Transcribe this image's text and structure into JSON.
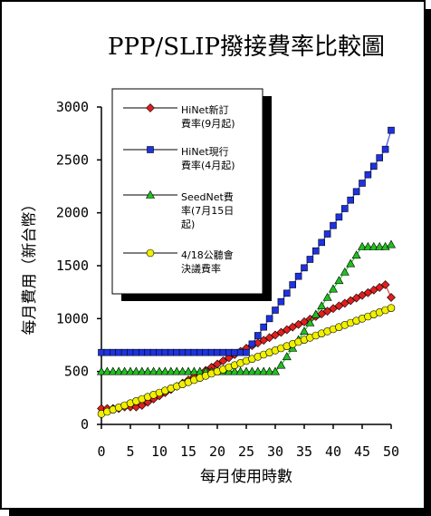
{
  "chart_data": {
    "type": "line",
    "title": "PPP/SLIP撥接費率比較圖",
    "xlabel": "每月使用時數",
    "ylabel": "每月費用（新台幣）",
    "xlim": [
      0,
      50
    ],
    "ylim": [
      0,
      3000
    ],
    "x_ticks": [
      "0",
      "5",
      "10",
      "15",
      "20",
      "25",
      "30",
      "35",
      "40",
      "45",
      "50"
    ],
    "y_ticks": [
      "0",
      "500",
      "1000",
      "1500",
      "2000",
      "2500",
      "3000"
    ],
    "grid": false,
    "legend_position": "top-left",
    "x": [
      0,
      1,
      2,
      3,
      4,
      5,
      6,
      7,
      8,
      9,
      10,
      11,
      12,
      13,
      14,
      15,
      16,
      17,
      18,
      19,
      20,
      21,
      22,
      23,
      24,
      25,
      26,
      27,
      28,
      29,
      30,
      31,
      32,
      33,
      34,
      35,
      36,
      37,
      38,
      39,
      40,
      41,
      42,
      43,
      44,
      45,
      46,
      47,
      48,
      49,
      50
    ],
    "series": [
      {
        "name": "HiNet新訂費率(9月起)",
        "color": "#e0201e",
        "marker": "diamond",
        "values": [
          150,
          150,
          150,
          150,
          165,
          165,
          165,
          180,
          210,
          240,
          270,
          300,
          330,
          360,
          390,
          420,
          450,
          480,
          510,
          540,
          570,
          600,
          630,
          660,
          690,
          720,
          745,
          770,
          795,
          820,
          845,
          870,
          895,
          920,
          945,
          970,
          995,
          1020,
          1045,
          1070,
          1095,
          1120,
          1145,
          1170,
          1195,
          1220,
          1245,
          1270,
          1295,
          1320,
          1200
        ]
      },
      {
        "name": "HiNet現行費率(4月起)",
        "color": "#1e32e0",
        "marker": "square",
        "values": [
          680,
          680,
          680,
          680,
          680,
          680,
          680,
          680,
          680,
          680,
          680,
          680,
          680,
          680,
          680,
          680,
          680,
          680,
          680,
          680,
          680,
          680,
          680,
          680,
          680,
          680,
          760,
          840,
          920,
          1000,
          1080,
          1160,
          1240,
          1320,
          1400,
          1480,
          1560,
          1640,
          1720,
          1800,
          1880,
          1960,
          2040,
          2120,
          2200,
          2280,
          2360,
          2440,
          2520,
          2600,
          2780
        ]
      },
      {
        "name": "SeedNet費率(7月15日起)",
        "color": "#20c020",
        "marker": "triangle",
        "values": [
          500,
          500,
          500,
          500,
          500,
          500,
          500,
          500,
          500,
          500,
          500,
          500,
          500,
          500,
          500,
          500,
          500,
          500,
          500,
          500,
          500,
          500,
          500,
          500,
          500,
          500,
          500,
          500,
          500,
          500,
          500,
          560,
          640,
          720,
          800,
          880,
          960,
          1040,
          1120,
          1200,
          1280,
          1360,
          1440,
          1520,
          1600,
          1680,
          1680,
          1680,
          1680,
          1680,
          1700
        ]
      },
      {
        "name": "4/18公聽會決議費率",
        "color": "#f0f000",
        "marker": "circle",
        "values": [
          100,
          120,
          140,
          160,
          180,
          200,
          220,
          240,
          260,
          280,
          300,
          320,
          340,
          360,
          380,
          400,
          420,
          440,
          460,
          480,
          500,
          520,
          540,
          560,
          580,
          600,
          620,
          640,
          660,
          680,
          700,
          720,
          740,
          760,
          780,
          800,
          820,
          840,
          860,
          880,
          900,
          920,
          940,
          960,
          980,
          1000,
          1020,
          1040,
          1060,
          1080,
          1100
        ]
      }
    ]
  },
  "legend": {
    "items": [
      {
        "line1": "HiNet新訂",
        "line2": "費率(9月起)",
        "line3": ""
      },
      {
        "line1": "HiNet現行",
        "line2": "費率(4月起)",
        "line3": ""
      },
      {
        "line1": "SeedNet費",
        "line2": "率(7月15日",
        "line3": "起)"
      },
      {
        "line1": "4/18公聽會",
        "line2": "決議費率",
        "line3": ""
      }
    ]
  }
}
